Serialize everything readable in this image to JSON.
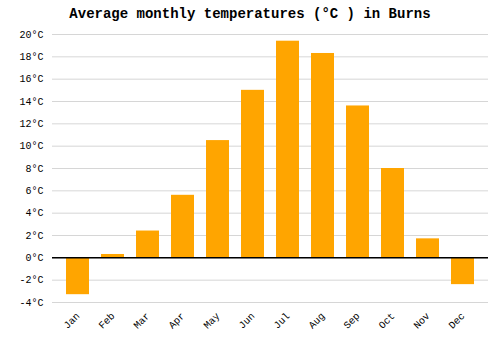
{
  "chart_data": {
    "type": "bar",
    "title": "Average monthly temperatures (°C ) in Burns",
    "categories": [
      "Jan",
      "Feb",
      "Mar",
      "Apr",
      "May",
      "Jun",
      "Jul",
      "Aug",
      "Sep",
      "Oct",
      "Nov",
      "Dec"
    ],
    "values": [
      -3.3,
      0.3,
      2.4,
      5.6,
      10.5,
      15.0,
      19.4,
      18.3,
      13.6,
      8.0,
      1.7,
      -2.4
    ],
    "color": "#FFA500",
    "ylim": [
      -4,
      20
    ],
    "yticks": [
      {
        "value": -4,
        "label": "-4°C"
      },
      {
        "value": -2,
        "label": "-2°C"
      },
      {
        "value": 0,
        "label": "0°C"
      },
      {
        "value": 2,
        "label": "2°C"
      },
      {
        "value": 4,
        "label": "4°C"
      },
      {
        "value": 6,
        "label": "6°C"
      },
      {
        "value": 8,
        "label": "8°C"
      },
      {
        "value": 10,
        "label": "10°C"
      },
      {
        "value": 12,
        "label": "12°C"
      },
      {
        "value": 14,
        "label": "14°C"
      },
      {
        "value": 16,
        "label": "16°C"
      },
      {
        "value": 18,
        "label": "18°C"
      },
      {
        "value": 20,
        "label": "20°C"
      }
    ],
    "grid": true
  }
}
